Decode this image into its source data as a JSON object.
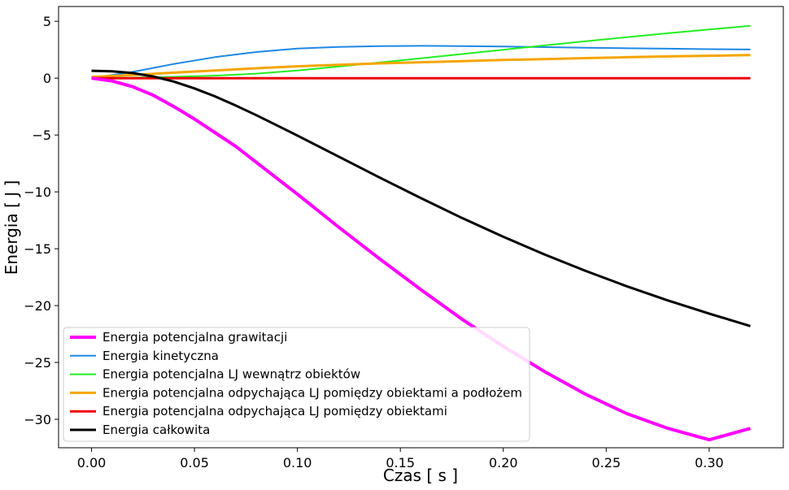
{
  "chart_data": {
    "type": "line",
    "xlabel": "Czas [ s ]",
    "ylabel": "Energia [ J ]",
    "xlim": [
      -0.016,
      0.336
    ],
    "ylim": [
      -32.5,
      6.3
    ],
    "xticks": [
      0.0,
      0.05,
      0.1,
      0.15,
      0.2,
      0.25,
      0.3
    ],
    "xtick_labels": [
      "0.00",
      "0.05",
      "0.10",
      "0.15",
      "0.20",
      "0.25",
      "0.30"
    ],
    "yticks": [
      5,
      0,
      -5,
      -10,
      -15,
      -20,
      -25,
      -30
    ],
    "ytick_labels": [
      "5",
      "0",
      "−5",
      "−10",
      "−15",
      "−20",
      "−25",
      "−30"
    ],
    "grid": false,
    "legend_position": "lower-left",
    "series": [
      {
        "name": "Energia potencjalna grawitacji",
        "color": "#ff00ff",
        "x": [
          0.0,
          0.01,
          0.02,
          0.03,
          0.04,
          0.05,
          0.06,
          0.07,
          0.08,
          0.09,
          0.1,
          0.12,
          0.14,
          0.16,
          0.18,
          0.2,
          0.22,
          0.24,
          0.26,
          0.28,
          0.3,
          0.32
        ],
        "y": [
          0.0,
          -0.25,
          -0.75,
          -1.5,
          -2.5,
          -3.6,
          -4.8,
          -6.0,
          -7.4,
          -8.8,
          -10.2,
          -13.1,
          -15.9,
          -18.6,
          -21.2,
          -23.6,
          -25.8,
          -27.8,
          -29.5,
          -30.8,
          -31.8,
          -30.8
        ]
      },
      {
        "name": "Energia kinetyczna",
        "color": "#1e88e5",
        "x": [
          0.0,
          0.02,
          0.04,
          0.06,
          0.08,
          0.1,
          0.12,
          0.14,
          0.16,
          0.18,
          0.2,
          0.22,
          0.24,
          0.26,
          0.28,
          0.3,
          0.32
        ],
        "y": [
          0.0,
          0.55,
          1.25,
          1.85,
          2.3,
          2.6,
          2.75,
          2.82,
          2.84,
          2.82,
          2.78,
          2.73,
          2.68,
          2.63,
          2.59,
          2.55,
          2.52
        ]
      },
      {
        "name": "Energia potencjalna LJ wewnątrz obiektów",
        "color": "#22ee22",
        "x": [
          0.0,
          0.02,
          0.04,
          0.06,
          0.08,
          0.1,
          0.12,
          0.14,
          0.16,
          0.18,
          0.2,
          0.22,
          0.24,
          0.26,
          0.28,
          0.3,
          0.32
        ],
        "y": [
          0.0,
          0.05,
          0.12,
          0.22,
          0.4,
          0.68,
          1.02,
          1.38,
          1.75,
          2.12,
          2.5,
          2.88,
          3.25,
          3.6,
          3.95,
          4.28,
          4.6
        ]
      },
      {
        "name": "Energia potencjalna odpychająca LJ pomiędzy obiektami a podłożem",
        "color": "#f5a500",
        "x": [
          0.0,
          0.02,
          0.04,
          0.06,
          0.08,
          0.1,
          0.12,
          0.14,
          0.16,
          0.18,
          0.2,
          0.22,
          0.24,
          0.26,
          0.28,
          0.3,
          0.32
        ],
        "y": [
          0.1,
          0.28,
          0.48,
          0.68,
          0.87,
          1.04,
          1.18,
          1.3,
          1.4,
          1.5,
          1.6,
          1.68,
          1.76,
          1.84,
          1.91,
          1.97,
          2.03
        ]
      },
      {
        "name": "Energia potencjalna odpychająca LJ pomiędzy obiektami",
        "color": "#ee0000",
        "x": [
          0.0,
          0.32
        ],
        "y": [
          0.0,
          0.0
        ]
      },
      {
        "name": "Energia całkowita",
        "color": "#000000",
        "x": [
          0.0,
          0.01,
          0.02,
          0.03,
          0.04,
          0.05,
          0.06,
          0.07,
          0.08,
          0.09,
          0.1,
          0.12,
          0.14,
          0.16,
          0.18,
          0.2,
          0.22,
          0.24,
          0.26,
          0.28,
          0.3,
          0.32
        ],
        "y": [
          0.65,
          0.6,
          0.45,
          0.15,
          -0.3,
          -0.9,
          -1.6,
          -2.4,
          -3.25,
          -4.15,
          -5.05,
          -6.9,
          -8.75,
          -10.55,
          -12.3,
          -13.95,
          -15.5,
          -16.95,
          -18.3,
          -19.55,
          -20.7,
          -21.8
        ]
      }
    ]
  }
}
